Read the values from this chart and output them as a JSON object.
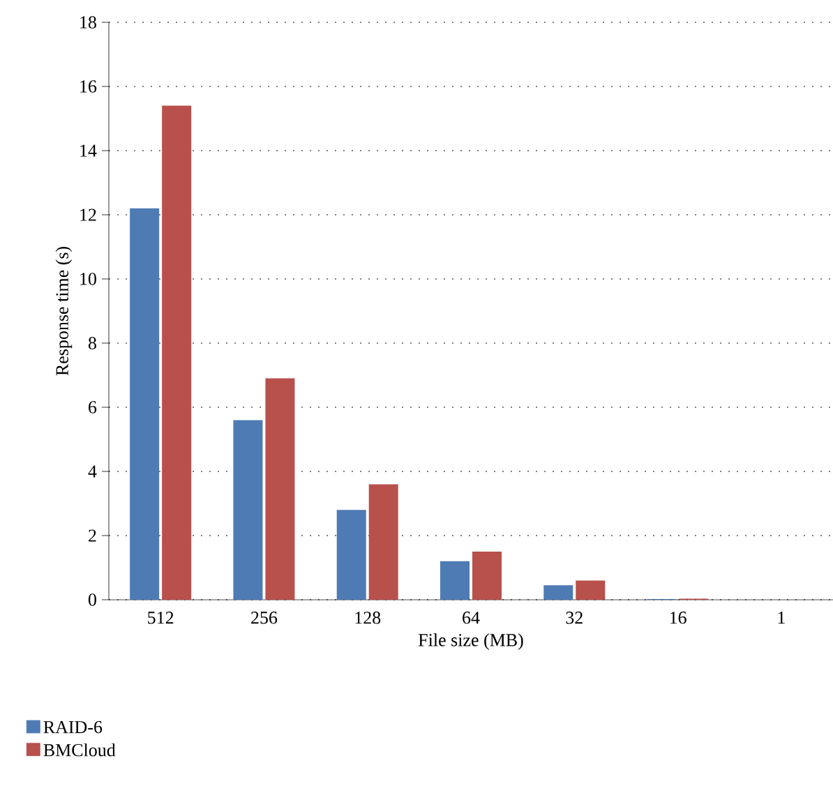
{
  "chart_data": {
    "type": "bar",
    "xlabel": "File size (MB)",
    "ylabel": "Response time (s)",
    "categories": [
      "512",
      "256",
      "128",
      "64",
      "32",
      "16",
      "1"
    ],
    "series": [
      {
        "name": "RAID-6",
        "color": "#4e7bb4",
        "values": [
          12.2,
          5.6,
          2.8,
          1.2,
          0.45,
          0.02,
          null
        ]
      },
      {
        "name": "BMCloud",
        "color": "#b8504c",
        "values": [
          15.4,
          6.9,
          3.6,
          1.5,
          0.6,
          0.03,
          null
        ]
      }
    ],
    "ylim": [
      0,
      18
    ],
    "yticks": [
      0,
      2,
      4,
      6,
      8,
      10,
      12,
      14,
      16,
      18
    ],
    "grid": "y",
    "legend": "bottom left"
  }
}
